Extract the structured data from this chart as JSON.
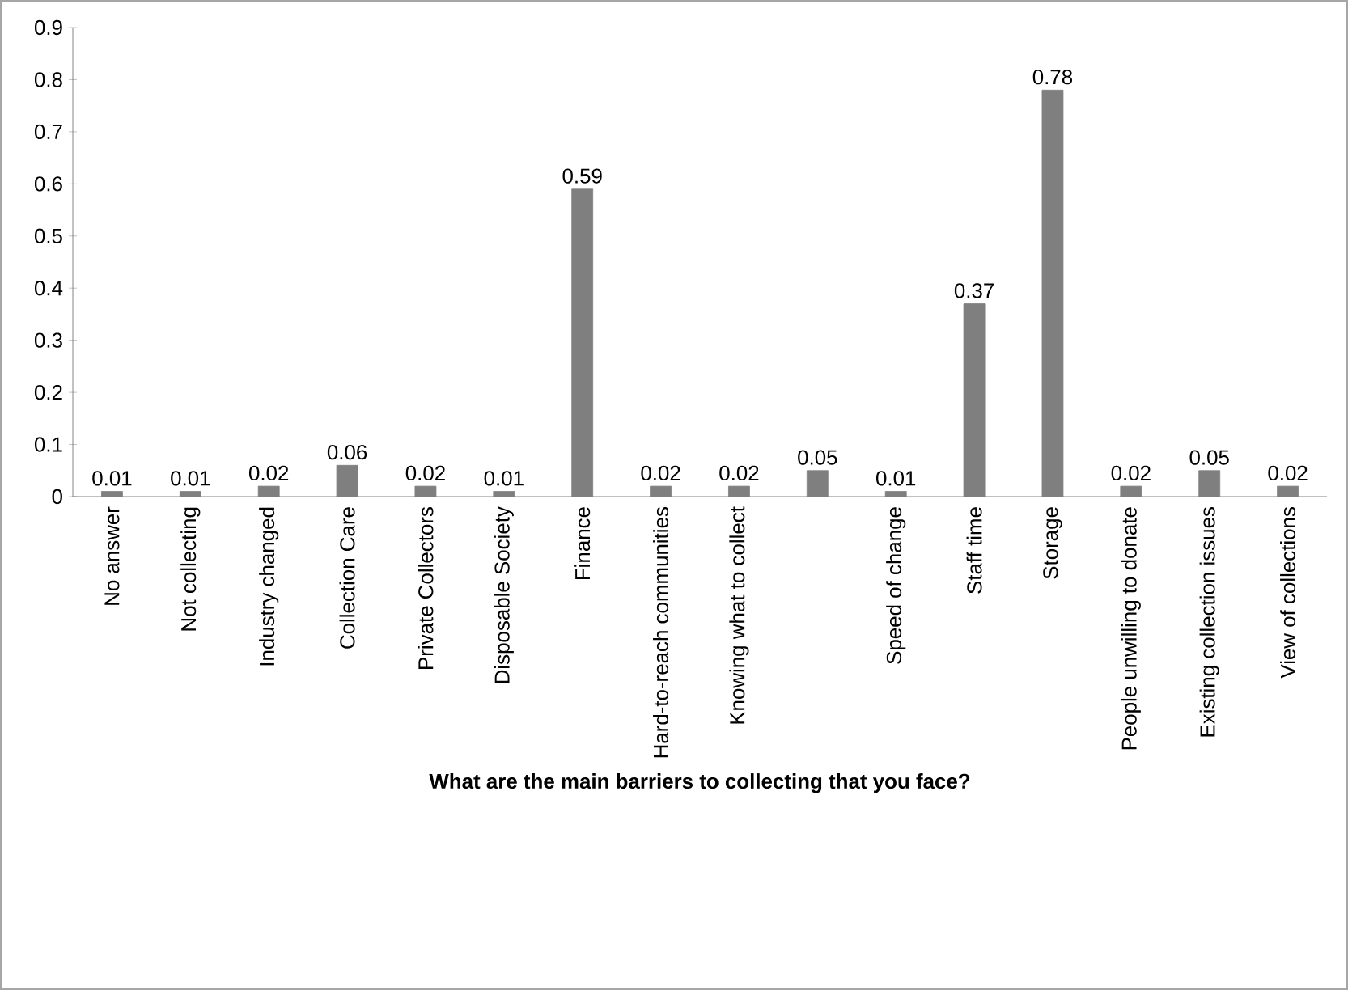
{
  "chart_data": {
    "type": "bar",
    "xlabel": "What are the main barriers to collecting that you face?",
    "categories": [
      "No answer",
      "Not collecting",
      "Industry changed",
      "Collection Care",
      "Private Collectors",
      "Disposable Society",
      "Finance",
      "Hard-to-reach communities",
      "Knowing what to collect",
      null,
      "Speed of change",
      "Staff time",
      "Storage",
      "People unwilling to donate",
      "Existing collection issues",
      "View of collections"
    ],
    "values": [
      0.01,
      0.01,
      0.02,
      0.06,
      0.02,
      0.01,
      0.59,
      0.02,
      0.02,
      0.05,
      0.01,
      0.37,
      0.78,
      0.02,
      0.05,
      0.02
    ],
    "color": "#7f7f7f",
    "ylim": [
      0,
      0.9
    ],
    "yticks": [
      0,
      0.1,
      0.2,
      0.3,
      0.4,
      0.5,
      0.6,
      0.7,
      0.8,
      0.9
    ],
    "data_labels": true,
    "grid": false
  }
}
